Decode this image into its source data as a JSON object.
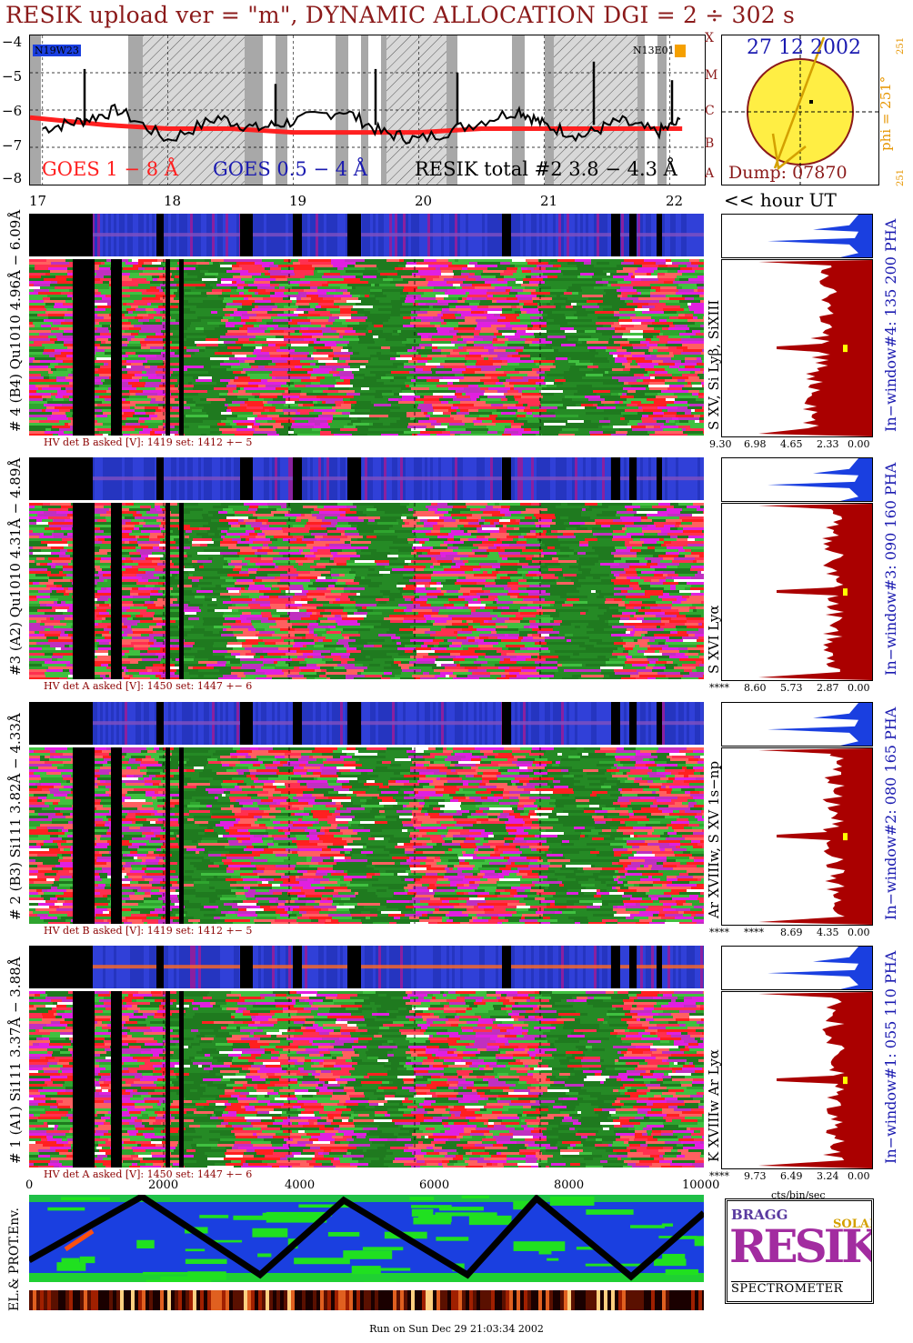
{
  "header": {
    "title": "RESIK upload ver = \"m\", DYNAMIC ALLOCATION  DGI =   2 ÷ 302 s",
    "date": "27 12 2002",
    "dump": "Dump: 07870",
    "phi": "phi = 251°",
    "phi_small": "251",
    "phi_small2": "251",
    "region_left": "N19W23",
    "region_right": "N13E01"
  },
  "goes": {
    "y_ticks": [
      "−4",
      "−5",
      "−6",
      "−7",
      "−8"
    ],
    "class_letters": [
      "X",
      "M",
      "C",
      "B",
      "A"
    ],
    "legend_1_8": "GOES 1 − 8 Å",
    "legend_05_4": "GOES 0.5 − 4 Å",
    "legend_resik": "RESIK total #2 3.8 − 4.3 Å",
    "hours": [
      "17",
      "18",
      "19",
      "20",
      "21",
      "22"
    ],
    "hour_unit": "<< hour UT"
  },
  "panels": [
    {
      "label": "# 4 (B4) Qu1010 4.96Å − 6.09Å",
      "lines": "S XV, Si Lyβ, SiXIII",
      "window": "In−window#4:  135 200 PHA",
      "hv": "HV det B asked [V]:  1419 set:  1412 +−    5",
      "scale": [
        "9.30",
        "6.98",
        "4.65",
        "2.33",
        "0.00"
      ]
    },
    {
      "label": "#3 (A2) Qu1010  4.31Å − 4.89Å",
      "lines": "S XVI Lyα",
      "window": "In−window#3:  090 160 PHA",
      "hv": "HV det A asked [V]:  1450 set:  1447 +−    6",
      "scale": [
        "****",
        "8.60",
        "5.73",
        "2.87",
        "0.00"
      ]
    },
    {
      "label": "# 2 (B3) Si111  3.82Å − 4.33Å",
      "lines": "Ar XVIIIw,  S XV 1s−np",
      "window": "In−window#2:  080 165 PHA",
      "hv": "HV det B asked [V]:  1419 set:  1412 +−    5",
      "scale": [
        "****",
        "****",
        "8.69",
        "4.35",
        "0.00"
      ]
    },
    {
      "label": "# 1 (A1) Si111  3.37Å − 3.88Å",
      "lines": "K XVIIIw  Ar Lyα",
      "window": "In−window#1:  055 110 PHA",
      "hv": "HV det A asked [V]:  1450 set:  1447 +−    6",
      "scale": [
        "****",
        "9.73",
        "6.49",
        "3.24",
        "0.00"
      ]
    }
  ],
  "bottom": {
    "x_ticks": [
      "0",
      "2000",
      "4000",
      "6000",
      "8000",
      "10000"
    ],
    "cts_label": "cts/bin/sec",
    "env_label": "EL.& PROT.Env.",
    "logo_line": "SPECTROMETER",
    "logo_big": "RESIK",
    "logo_bragg": "BRAGG",
    "logo_solar": "SOLAR"
  },
  "footer": "Run on Sun Dec 29 21:03:34 2002",
  "colors": {
    "title": "#8b1a1a",
    "goes_long": "#ff2020",
    "goes_short": "#1a1ab0",
    "histogram": "#aa0000",
    "pha": "#1a3fe0",
    "sun": "#ffee44"
  },
  "chart_data": [
    {
      "type": "line",
      "title": "",
      "xlabel": "<< hour UT",
      "ylabel": "",
      "x_categories": [
        "17",
        "18",
        "19",
        "20",
        "21",
        "22"
      ],
      "ylim": [
        -8,
        -4
      ],
      "series": [
        {
          "name": "GOES 1 − 8 Å",
          "x": [
            16.9,
            17.5,
            18,
            18.5,
            19,
            19.5,
            20,
            20.5,
            21,
            21.5,
            22.1
          ],
          "y": [
            -6.2,
            -6.4,
            -6.5,
            -6.5,
            -6.6,
            -6.6,
            -6.6,
            -6.5,
            -6.5,
            -6.5,
            -6.5
          ]
        },
        {
          "name": "RESIK total #2 3.8 − 4.3 Å",
          "x": [
            17,
            17.3,
            17.6,
            18,
            18.4,
            18.7,
            19,
            19.4,
            19.7,
            20,
            20.4,
            20.8,
            21,
            21.3,
            21.6,
            21.9,
            22.1
          ],
          "y": [
            -6.5,
            -6.3,
            -6.0,
            -6.8,
            -6.2,
            -6.5,
            -6.3,
            -6.0,
            -6.6,
            -6.8,
            -6.4,
            -6.0,
            -6.4,
            -6.7,
            -6.3,
            -6.6,
            -6.3
          ]
        }
      ]
    }
  ]
}
